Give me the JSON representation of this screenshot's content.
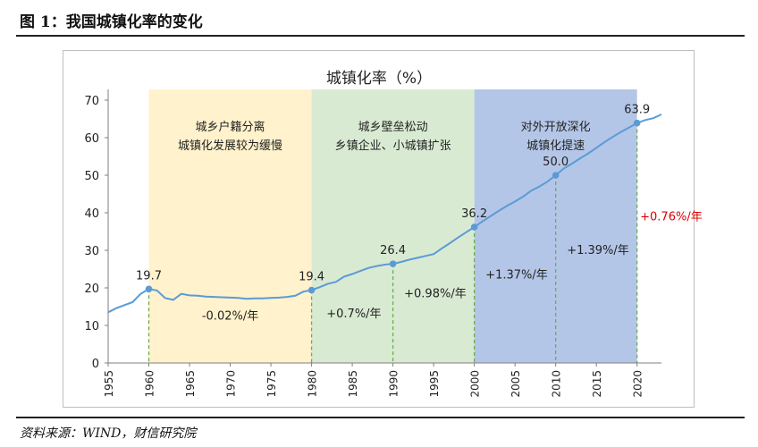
{
  "figure_title": "图 1：我国城镇化率的变化",
  "source": "资料来源：WIND，财信研究院",
  "chart_data": {
    "type": "line",
    "title": "城镇化率（%）",
    "xlim": [
      1955,
      2023
    ],
    "ylim": [
      0,
      70
    ],
    "y_ticks": [
      0,
      10,
      20,
      30,
      40,
      50,
      60,
      70
    ],
    "x_ticks": [
      1955,
      1960,
      1965,
      1970,
      1975,
      1980,
      1985,
      1990,
      1995,
      2000,
      2005,
      2010,
      2015,
      2020
    ],
    "series": [
      {
        "color": "#5b9bd5",
        "x": [
          1955,
          1956,
          1957,
          1958,
          1959,
          1960,
          1961,
          1962,
          1963,
          1964,
          1965,
          1966,
          1967,
          1968,
          1969,
          1970,
          1971,
          1972,
          1973,
          1974,
          1975,
          1976,
          1977,
          1978,
          1979,
          1980,
          1981,
          1982,
          1983,
          1984,
          1985,
          1986,
          1987,
          1988,
          1989,
          1990,
          1991,
          1992,
          1993,
          1994,
          1995,
          1996,
          1997,
          1998,
          1999,
          2000,
          2001,
          2002,
          2003,
          2004,
          2005,
          2006,
          2007,
          2008,
          2009,
          2010,
          2011,
          2012,
          2013,
          2014,
          2015,
          2016,
          2017,
          2018,
          2019,
          2020,
          2021,
          2022,
          2023
        ],
        "y": [
          13.5,
          14.6,
          15.4,
          16.2,
          18.4,
          19.7,
          19.3,
          17.3,
          16.8,
          18.4,
          18.0,
          17.9,
          17.7,
          17.6,
          17.5,
          17.4,
          17.3,
          17.1,
          17.2,
          17.2,
          17.3,
          17.4,
          17.6,
          17.9,
          19.0,
          19.4,
          20.2,
          21.1,
          21.6,
          23.0,
          23.7,
          24.5,
          25.3,
          25.8,
          26.2,
          26.4,
          26.9,
          27.5,
          28.0,
          28.5,
          29.0,
          30.5,
          31.9,
          33.4,
          34.8,
          36.2,
          37.7,
          39.1,
          40.5,
          41.8,
          43.0,
          44.3,
          45.9,
          47.0,
          48.3,
          50.0,
          51.8,
          53.1,
          54.5,
          55.8,
          57.3,
          58.8,
          60.2,
          61.5,
          62.7,
          63.9,
          64.7,
          65.2,
          66.2
        ]
      }
    ],
    "periods": [
      {
        "start": 1960,
        "end": 1980,
        "color": "#fff2cc",
        "label_lines": [
          "城乡户籍分离",
          "城镇化发展较为缓慢"
        ],
        "rate": "-0.02%/年"
      },
      {
        "start": 1980,
        "end": 2000,
        "color": "#d9ead3",
        "label_lines": [
          "城乡壁垒松动",
          "乡镇企业、小城镇扩张"
        ]
      },
      {
        "start": 2000,
        "end": 2020,
        "color": "#b4c6e7",
        "label_lines": [
          "对外开放深化",
          "城镇化提速"
        ]
      }
    ],
    "rate_labels": [
      {
        "text": "-0.02%/年",
        "x": 1970,
        "y": 11.5,
        "color": "#222222"
      },
      {
        "text": "+0.7%/年",
        "x": 1985.2,
        "y": 12.2,
        "color": "#222222"
      },
      {
        "text": "+0.98%/年",
        "x": 1995.2,
        "y": 17.5,
        "color": "#222222"
      },
      {
        "text": "+1.37%/年",
        "x": 2005.2,
        "y": 22.5,
        "color": "#222222"
      },
      {
        "text": "+1.39%/年",
        "x": 2015.2,
        "y": 29.0,
        "color": "#222222"
      },
      {
        "text": "+0.76%/年",
        "x": 2024.2,
        "y": 38.0,
        "color": "#e00000"
      }
    ],
    "markers": [
      {
        "x": 1960,
        "y": 19.7,
        "label": "19.7"
      },
      {
        "x": 1980,
        "y": 19.4,
        "label": "19.4"
      },
      {
        "x": 1990,
        "y": 26.4,
        "label": "26.4"
      },
      {
        "x": 2000,
        "y": 36.2,
        "label": "36.2"
      },
      {
        "x": 2010,
        "y": 50.0,
        "label": "50.0"
      },
      {
        "x": 2020,
        "y": 63.9,
        "label": "63.9"
      }
    ],
    "grid": false,
    "legend": "none"
  }
}
